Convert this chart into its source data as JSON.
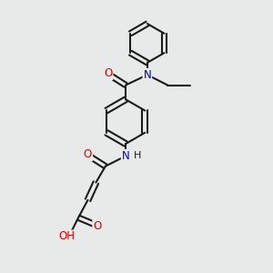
{
  "bg_color": "#e8eaea",
  "bond_color": "#1a1a1a",
  "atom_colors": {
    "O": "#dd0000",
    "N": "#0000cc",
    "C": "#1a1a1a"
  },
  "line_width": 1.5,
  "font_size_atom": 8.5,
  "fig_size": [
    3.0,
    3.0
  ],
  "dpi": 100
}
